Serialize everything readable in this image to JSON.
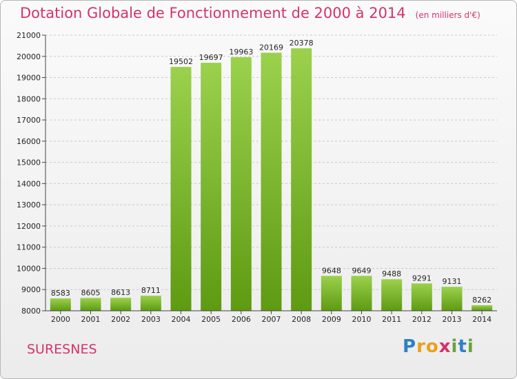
{
  "header": {
    "title": "Dotation Globale de Fonctionnement de 2000 à 2014",
    "subtitle": "(en milliers d'€)"
  },
  "place": "SURESNES",
  "logo": {
    "letters": [
      "P",
      "r",
      "o",
      "x",
      "i",
      "t",
      "i"
    ],
    "colors": [
      "#2f7fc9",
      "#e8a21b",
      "#e8a21b",
      "#d4326b",
      "#6aa33a",
      "#2f7fc9",
      "#6aa33a"
    ]
  },
  "colors": {
    "bar_top": "#9bd14d",
    "bar_bottom": "#5e9a12",
    "axis": "#444444",
    "grid": "#c8c8c8",
    "text": "#222222"
  },
  "chart_data": {
    "type": "bar",
    "categories": [
      "2000",
      "2001",
      "2002",
      "2003",
      "2004",
      "2005",
      "2006",
      "2007",
      "2008",
      "2009",
      "2010",
      "2011",
      "2012",
      "2013",
      "2014"
    ],
    "values": [
      8583,
      8605,
      8613,
      8711,
      19502,
      19697,
      19963,
      20169,
      20378,
      9648,
      9649,
      9488,
      9291,
      9131,
      8262
    ],
    "yticks": [
      8000,
      9000,
      10000,
      11000,
      12000,
      13000,
      14000,
      15000,
      16000,
      17000,
      18000,
      19000,
      20000,
      21000
    ],
    "ylim": [
      8000,
      21000
    ],
    "grid": true,
    "legend": "none"
  }
}
